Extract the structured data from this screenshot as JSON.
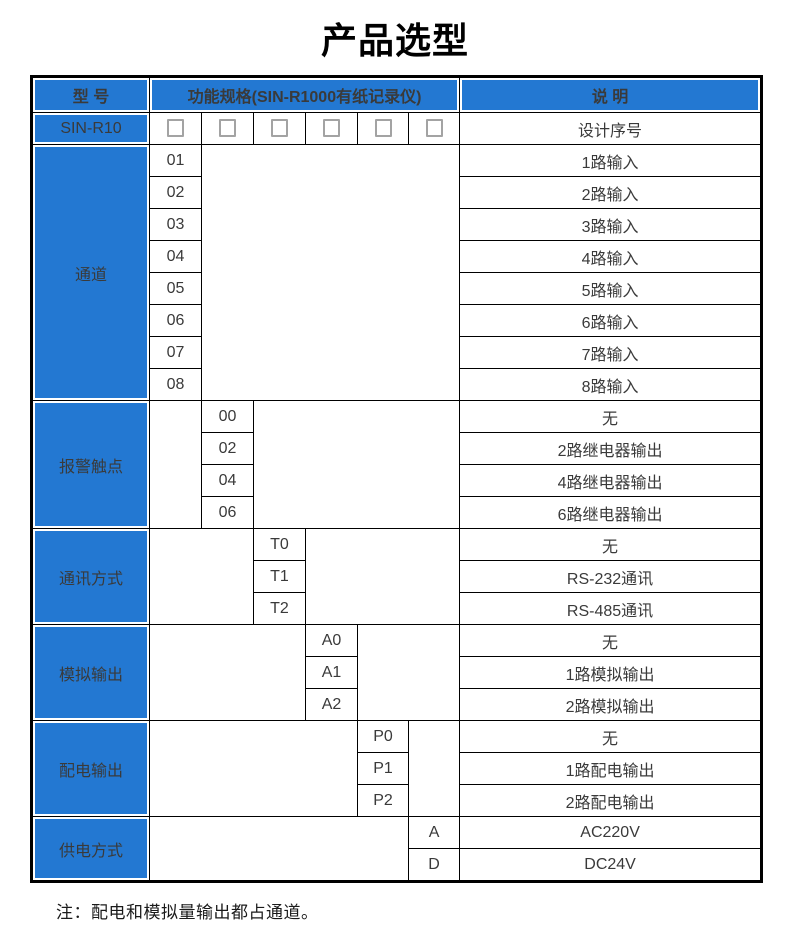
{
  "page": {
    "title": "产品选型",
    "note": "注：配电和模拟量输出都占通道。"
  },
  "colors": {
    "header_blue": "#2378D2",
    "grid_black": "#000000",
    "checkbox_gray": "#A3A3A3"
  },
  "table": {
    "headers": {
      "model": "型 号",
      "spec": "功能规格(SIN-R1000有纸记录仪)",
      "desc": "说 明"
    },
    "model_row": {
      "model": "SIN-R10",
      "checkbox_count": 6,
      "desc": "设计序号"
    },
    "sections": [
      {
        "category": "通道",
        "code_col": 1,
        "options": [
          {
            "code": "01",
            "desc": "1路输入"
          },
          {
            "code": "02",
            "desc": "2路输入"
          },
          {
            "code": "03",
            "desc": "3路输入"
          },
          {
            "code": "04",
            "desc": "4路输入"
          },
          {
            "code": "05",
            "desc": "5路输入"
          },
          {
            "code": "06",
            "desc": "6路输入"
          },
          {
            "code": "07",
            "desc": "7路输入"
          },
          {
            "code": "08",
            "desc": "8路输入"
          }
        ]
      },
      {
        "category": "报警触点",
        "code_col": 2,
        "options": [
          {
            "code": "00",
            "desc": "无"
          },
          {
            "code": "02",
            "desc": "2路继电器输出"
          },
          {
            "code": "04",
            "desc": "4路继电器输出"
          },
          {
            "code": "06",
            "desc": "6路继电器输出"
          }
        ]
      },
      {
        "category": "通讯方式",
        "code_col": 3,
        "options": [
          {
            "code": "T0",
            "desc": "无"
          },
          {
            "code": "T1",
            "desc": "RS-232通讯"
          },
          {
            "code": "T2",
            "desc": "RS-485通讯"
          }
        ]
      },
      {
        "category": "模拟输出",
        "code_col": 4,
        "options": [
          {
            "code": "A0",
            "desc": "无"
          },
          {
            "code": "A1",
            "desc": "1路模拟输出"
          },
          {
            "code": "A2",
            "desc": "2路模拟输出"
          }
        ]
      },
      {
        "category": "配电输出",
        "code_col": 5,
        "options": [
          {
            "code": "P0",
            "desc": "无"
          },
          {
            "code": "P1",
            "desc": "1路配电输出"
          },
          {
            "code": "P2",
            "desc": "2路配电输出"
          }
        ]
      },
      {
        "category": "供电方式",
        "code_col": 6,
        "options": [
          {
            "code": "A",
            "desc": "AC220V"
          },
          {
            "code": "D",
            "desc": "DC24V"
          }
        ]
      }
    ]
  }
}
